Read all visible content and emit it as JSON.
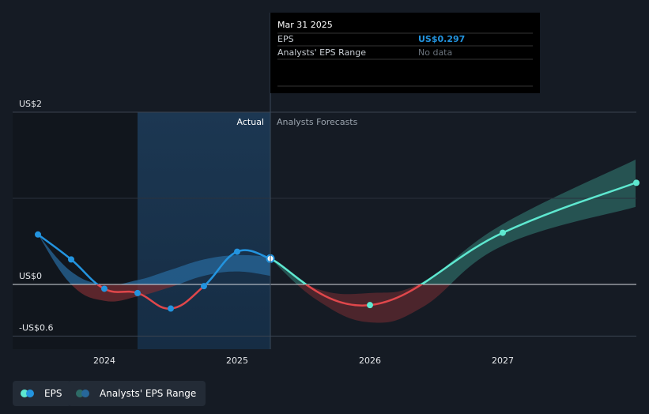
{
  "colors": {
    "background": "#151b24",
    "actual_blue": "#2394df",
    "below_zero_red": "#e0474b",
    "forecast_teal": "#5ee8d0",
    "forecast_band": "#2e6b66",
    "band_blue": "#27679a",
    "band_red": "#7a2d33",
    "tooltip_value": "#2394df"
  },
  "tooltip": {
    "date": "Mar 31 2025",
    "rows": [
      {
        "label": "EPS",
        "value": "US$0.297"
      },
      {
        "label": "Analysts' EPS Range",
        "value": "No data"
      }
    ]
  },
  "regions": {
    "actual_label": "Actual",
    "forecast_label": "Analysts Forecasts"
  },
  "legend": {
    "eps": "EPS",
    "range": "Analysts' EPS Range"
  },
  "chart_data": {
    "type": "line",
    "y_tick_labels": [
      {
        "value": 2,
        "label": "US$2"
      },
      {
        "value": 0,
        "label": "US$0"
      },
      {
        "value": -0.6,
        "label": "-US$0.6"
      }
    ],
    "x_tick_labels": [
      {
        "value": 2024.0,
        "label": "2024"
      },
      {
        "value": 2025.0,
        "label": "2025"
      },
      {
        "value": 2026.0,
        "label": "2026"
      },
      {
        "value": 2027.0,
        "label": "2027"
      }
    ],
    "ylim": [
      -0.6,
      2
    ],
    "xlim": [
      2023.52,
      2028.0
    ],
    "grid": "horizontal",
    "highlight_date": 2025.25,
    "series": [
      {
        "name": "EPS",
        "role": "actual",
        "points": [
          {
            "x": 2023.5,
            "y": 0.58
          },
          {
            "x": 2023.75,
            "y": 0.29
          },
          {
            "x": 2024.0,
            "y": -0.05
          },
          {
            "x": 2024.25,
            "y": -0.1
          },
          {
            "x": 2024.5,
            "y": -0.28
          },
          {
            "x": 2024.75,
            "y": -0.02
          },
          {
            "x": 2025.0,
            "y": 0.38
          },
          {
            "x": 2025.25,
            "y": 0.3
          }
        ]
      },
      {
        "name": "EPS",
        "role": "forecast",
        "points": [
          {
            "x": 2025.25,
            "y": 0.3
          },
          {
            "x": 2026.0,
            "y": -0.24
          },
          {
            "x": 2027.0,
            "y": 0.6
          },
          {
            "x": 2028.0,
            "y": 1.18
          }
        ]
      }
    ],
    "range_band": {
      "name": "Analysts' EPS Range",
      "historical": {
        "x": [
          2023.5,
          2023.75,
          2024.0,
          2024.25,
          2024.5,
          2024.75,
          2025.0,
          2025.25
        ],
        "low": [
          0.58,
          0.0,
          -0.19,
          -0.14,
          -0.03,
          0.1,
          0.15,
          0.1
        ],
        "high": [
          0.58,
          0.15,
          0.0,
          0.05,
          0.17,
          0.29,
          0.34,
          0.32
        ]
      },
      "forecast": {
        "x": [
          2025.25,
          2025.6,
          2026.0,
          2026.4,
          2027.0,
          2028.0
        ],
        "low": [
          0.3,
          -0.18,
          -0.44,
          -0.26,
          0.45,
          0.9
        ],
        "high": [
          0.3,
          -0.05,
          -0.1,
          0.03,
          0.7,
          1.45
        ]
      }
    }
  }
}
